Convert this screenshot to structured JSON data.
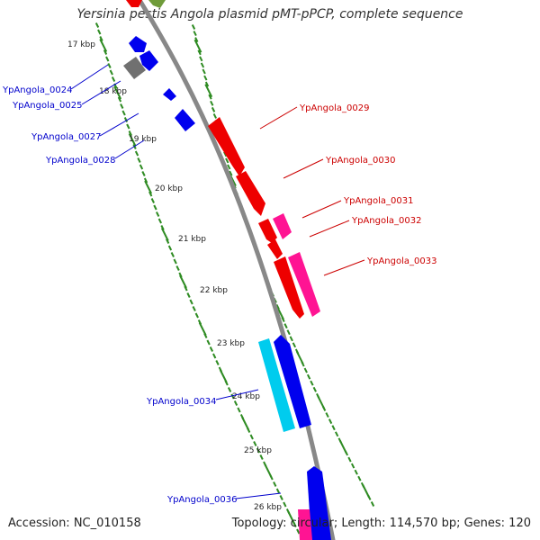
{
  "title": "Yersinia pestis Angola plasmid pMT-pPCP, complete sequence",
  "footer": {
    "accession": "Accession: NC_010158",
    "topology": "Topology: circular; Length: 114,570 bp; Genes: 120"
  },
  "colors": {
    "backbone": "#888888",
    "gc_dots": "#2e8b22",
    "forward_label": "#0000cc",
    "reverse_label": "#cc0000"
  },
  "kbp_ticks": [
    "17 kbp",
    "18 kbp",
    "19 kbp",
    "20 kbp",
    "21 kbp",
    "22 kbp",
    "23 kbp",
    "24 kbp",
    "25 kbp",
    "26 kbp"
  ],
  "gene_labels": [
    {
      "text": "YpAngola_0024",
      "strand": "forward"
    },
    {
      "text": "YpAngola_0025",
      "strand": "forward"
    },
    {
      "text": "YpAngola_0027",
      "strand": "forward"
    },
    {
      "text": "YpAngola_0028",
      "strand": "forward"
    },
    {
      "text": "YpAngola_0029",
      "strand": "reverse"
    },
    {
      "text": "YpAngola_0030",
      "strand": "reverse"
    },
    {
      "text": "YpAngola_0031",
      "strand": "reverse"
    },
    {
      "text": "YpAngola_0032",
      "strand": "reverse"
    },
    {
      "text": "YpAngola_0033",
      "strand": "reverse"
    },
    {
      "text": "YpAngola_0034",
      "strand": "forward"
    },
    {
      "text": "YpAngola_0036",
      "strand": "forward"
    }
  ]
}
